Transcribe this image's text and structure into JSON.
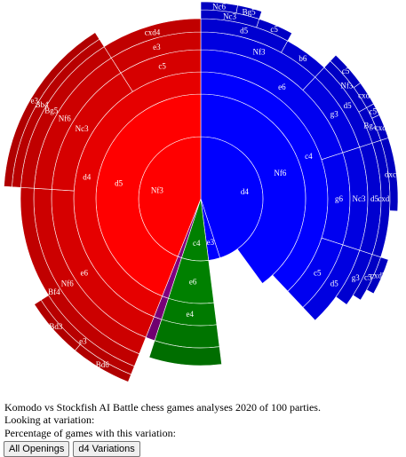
{
  "caption": "Komodo vs Stockfish AI Battle chess games analyses 2020 of 100 parties.",
  "looking_label": "Looking at variation:",
  "percentage_label": "Percentage of games with this variation:",
  "buttons": {
    "all_openings": "All Openings",
    "d4_variations": "d4 Variations"
  },
  "colors": {
    "background": "#ffffff",
    "separator": "#ffffff",
    "palette": {
      "blue": "#0000ff",
      "red": "#ff0000",
      "green": "#008000",
      "purple": "#800080"
    }
  },
  "chart_data": {
    "type": "sunburst",
    "title": "",
    "root": {
      "children": [
        {
          "name": "d4",
          "value": 45,
          "color": "blue",
          "children": [
            {
              "name": "Nf6",
              "value": 40,
              "children": [
                {
                  "name": "c4",
                  "value": 38,
                  "children": [
                    {
                      "name": "e6",
                      "value": 20,
                      "children": [
                        {
                          "name": "Nf3",
                          "value": 12,
                          "children": [
                            {
                              "name": "d5",
                              "value": 8,
                              "children": [
                                {
                                  "name": "Nc3",
                                  "value": 5,
                                  "children": [
                                    {
                                      "name": "Nc6",
                                      "value": 3
                                    },
                                    {
                                      "name": "Bg5",
                                      "value": 2
                                    }
                                  ]
                                },
                                {
                                  "name": "c5",
                                  "value": 3
                                }
                              ]
                            },
                            {
                              "name": "b6",
                              "value": 4
                            }
                          ]
                        },
                        {
                          "name": "g3",
                          "value": 8,
                          "children": [
                            {
                              "name": "d5",
                              "value": 8,
                              "children": [
                                {
                                  "name": "Nf3",
                                  "value": 5,
                                  "children": [
                                    {
                                      "name": "c5",
                                      "value": 3
                                    },
                                    {
                                      "name": "cxd",
                                      "value": 2
                                    }
                                  ]
                                },
                                {
                                  "name": "Bg2",
                                  "value": 3,
                                  "children": [
                                    {
                                      "name": "c5",
                                      "value": 1
                                    },
                                    {
                                      "name": "cxd",
                                      "value": 2
                                    }
                                  ]
                                }
                              ]
                            }
                          ]
                        }
                      ]
                    },
                    {
                      "name": "g6",
                      "value": 10,
                      "children": [
                        {
                          "name": "Nc3",
                          "value": 10,
                          "children": [
                            {
                              "name": "d5",
                              "value": 10,
                              "children": [
                                {
                                  "name": "cxd5",
                                  "value": 10,
                                  "children": [
                                    {
                                      "name": "dxc4",
                                      "value": 6
                                    }
                                  ]
                                }
                              ]
                            }
                          ]
                        }
                      ]
                    },
                    {
                      "name": "c5",
                      "value": 8,
                      "children": [
                        {
                          "name": "d5",
                          "value": 8,
                          "children": [
                            {
                              "name": "g3",
                              "value": 5,
                              "children": [
                                {
                                  "name": "c5",
                                  "value": 4,
                                  "children": [
                                    {
                                      "name": "cxd5",
                                      "value": 3
                                    }
                                  ]
                                }
                              ]
                            }
                          ]
                        }
                      ]
                    }
                  ]
                }
              ]
            }
          ]
        },
        {
          "name": "e3",
          "value": 3,
          "color": "blue"
        },
        {
          "name": "c4",
          "value": 7,
          "color": "green",
          "children": [
            {
              "name": "e6",
              "value": 7,
              "children": [
                {
                  "name": "e4",
                  "value": 7,
                  "children": [
                    {
                      "name": "",
                      "value": 7,
                      "children": [
                        {
                          "name": "",
                          "value": 7
                        }
                      ]
                    }
                  ]
                }
              ]
            }
          ]
        },
        {
          "name": "",
          "value": 1,
          "color": "purple",
          "children": [
            {
              "name": "",
              "value": 1,
              "children": [
                {
                  "name": "",
                  "value": 1,
                  "children": [
                    {
                      "name": "",
                      "value": 1
                    }
                  ]
                }
              ]
            }
          ]
        },
        {
          "name": "Nf3",
          "value": 44,
          "color": "red",
          "children": [
            {
              "name": "d5",
              "value": 44,
              "children": [
                {
                  "name": "d4",
                  "value": 44,
                  "children": [
                    {
                      "name": "e6",
                      "value": 20,
                      "children": [
                        {
                          "name": "Nf6",
                          "value": 20,
                          "children": [
                            {
                              "name": "Bf4",
                              "value": 20,
                              "children": [
                                {
                                  "name": "e3",
                                  "value": 10,
                                  "children": [
                                    {
                                      "name": "Bd6",
                                      "value": 5
                                    },
                                    {
                                      "name": "Bd3",
                                      "value": 5
                                    }
                                  ]
                                }
                              ]
                            }
                          ]
                        }
                      ]
                    },
                    {
                      "name": "Nc3",
                      "value": 15,
                      "children": [
                        {
                          "name": "Nf6",
                          "value": 15,
                          "children": [
                            {
                              "name": "Bg5",
                              "value": 15,
                              "children": [
                                {
                                  "name": "Bb4",
                                  "value": 15,
                                  "children": [
                                    {
                                      "name": "e3",
                                      "value": 15
                                    }
                                  ]
                                }
                              ]
                            }
                          ]
                        }
                      ]
                    },
                    {
                      "name": "c5",
                      "value": 9,
                      "children": [
                        {
                          "name": "e3",
                          "value": 9,
                          "children": [
                            {
                              "name": "cxd4",
                              "value": 9
                            }
                          ]
                        }
                      ]
                    }
                  ]
                }
              ]
            }
          ]
        }
      ]
    }
  }
}
